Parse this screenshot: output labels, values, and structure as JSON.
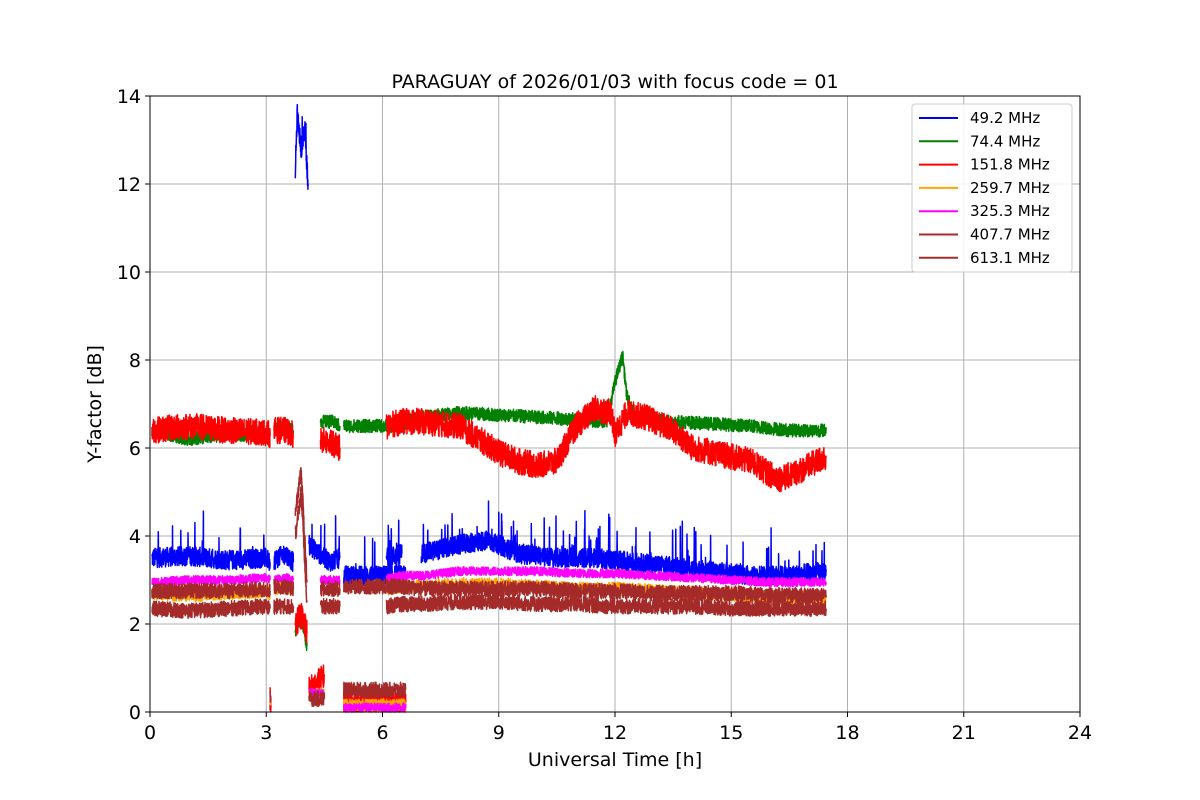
{
  "chart_data": {
    "type": "line",
    "title": "PARAGUAY of 2026/01/03 with focus code = 01",
    "xlabel": "Universal Time [h]",
    "ylabel": "Y-factor [dB]",
    "xlim": [
      0,
      24
    ],
    "ylim": [
      0,
      14
    ],
    "xticks": [
      0,
      3,
      6,
      9,
      12,
      15,
      18,
      21,
      24
    ],
    "yticks": [
      0,
      2,
      4,
      6,
      8,
      10,
      12,
      14
    ],
    "grid": true,
    "legend_position": "top-right",
    "series": [
      {
        "name": " 49.2 MHz",
        "color": "#0000ff",
        "noise": 0.45,
        "spikes": 0.45,
        "segments": [
          {
            "x": [
              0.05,
              1.0,
              2.0,
              3.0,
              3.1
            ],
            "y": [
              3.5,
              3.55,
              3.45,
              3.5,
              3.4
            ]
          },
          {
            "x": [
              3.1,
              3.12
            ],
            "y": [
              0.2,
              0.2
            ]
          },
          {
            "x": [
              3.2,
              3.5,
              3.7
            ],
            "y": [
              3.45,
              3.6,
              3.4
            ]
          },
          {
            "x": [
              3.75,
              3.8,
              3.9,
              4.0,
              4.05,
              4.08
            ],
            "y": [
              12.3,
              13.6,
              12.8,
              13.2,
              12.4,
              12.0
            ]
          },
          {
            "x": [
              4.1,
              4.5,
              4.7,
              4.9
            ],
            "y": [
              3.8,
              3.5,
              3.4,
              3.5
            ]
          },
          {
            "x": [
              5.0,
              6.0,
              6.6
            ],
            "y": [
              3.1,
              3.1,
              3.1
            ]
          },
          {
            "x": [
              6.1,
              6.5
            ],
            "y": [
              3.5,
              3.6
            ]
          },
          {
            "x": [
              7.0,
              8.0,
              8.7,
              9.0,
              9.5,
              10.5,
              11.5,
              12.5,
              13.5,
              14.5,
              15.5,
              16.5,
              17.45
            ],
            "y": [
              3.6,
              3.8,
              3.9,
              3.8,
              3.6,
              3.5,
              3.5,
              3.4,
              3.3,
              3.2,
              3.1,
              3.1,
              3.2
            ]
          }
        ]
      },
      {
        "name": " 74.4 MHz",
        "color": "#008000",
        "noise": 0.3,
        "spikes": 0,
        "segments": [
          {
            "x": [
              0.05,
              1.0,
              2.0,
              3.0,
              3.1
            ],
            "y": [
              6.4,
              6.2,
              6.3,
              6.3,
              6.3
            ]
          },
          {
            "x": [
              3.2,
              3.5,
              3.7
            ],
            "y": [
              6.4,
              6.5,
              6.4
            ]
          },
          {
            "x": [
              3.75,
              3.9,
              4.05
            ],
            "y": [
              1.8,
              2.2,
              1.5
            ]
          },
          {
            "x": [
              4.4,
              4.7,
              4.9
            ],
            "y": [
              6.6,
              6.6,
              6.5
            ]
          },
          {
            "x": [
              5.0,
              6.0,
              6.6
            ],
            "y": [
              6.5,
              6.5,
              6.5
            ]
          },
          {
            "x": [
              6.1,
              6.5,
              7.0,
              8.0,
              9.0,
              10.0,
              11.0,
              11.8,
              12.0,
              12.2,
              12.3,
              12.5,
              13.5,
              14.5,
              15.5,
              16.5,
              17.45
            ],
            "y": [
              6.5,
              6.6,
              6.7,
              6.8,
              6.75,
              6.7,
              6.65,
              6.6,
              7.5,
              8.1,
              7.2,
              6.7,
              6.6,
              6.55,
              6.5,
              6.4,
              6.4
            ]
          }
        ]
      },
      {
        "name": " 151.8 MHz",
        "color": "#ff0000",
        "noise": 0.6,
        "spikes": 0,
        "segments": [
          {
            "x": [
              0.05,
              1.0,
              2.0,
              3.0,
              3.1
            ],
            "y": [
              6.4,
              6.5,
              6.4,
              6.35,
              6.3
            ]
          },
          {
            "x": [
              3.1,
              3.12
            ],
            "y": [
              0.3,
              0.3
            ]
          },
          {
            "x": [
              3.2,
              3.5,
              3.7
            ],
            "y": [
              6.4,
              6.4,
              6.3
            ]
          },
          {
            "x": [
              3.75,
              3.9,
              4.05
            ],
            "y": [
              2.0,
              2.2,
              1.8
            ]
          },
          {
            "x": [
              4.1,
              4.5
            ],
            "y": [
              0.5,
              0.8
            ]
          },
          {
            "x": [
              4.4,
              4.7,
              4.9
            ],
            "y": [
              6.2,
              6.1,
              6.0
            ]
          },
          {
            "x": [
              5.0,
              6.0,
              6.6
            ],
            "y": [
              0.2,
              0.2,
              0.2
            ]
          },
          {
            "x": [
              6.1,
              6.5,
              7.0,
              8.0,
              8.5,
              9.0,
              9.5,
              10.0,
              10.5,
              11.0,
              11.5,
              11.9,
              12.0,
              12.3,
              12.8,
              13.5,
              14.0,
              14.5,
              15.0,
              15.5,
              16.0,
              16.3,
              16.8,
              17.45
            ],
            "y": [
              6.5,
              6.6,
              6.6,
              6.5,
              6.2,
              5.9,
              5.7,
              5.6,
              5.7,
              6.5,
              6.9,
              6.8,
              6.3,
              6.8,
              6.7,
              6.4,
              6.0,
              5.9,
              5.8,
              5.7,
              5.4,
              5.3,
              5.5,
              5.8
            ]
          }
        ]
      },
      {
        "name": " 259.7 MHz",
        "color": "#ffa500",
        "noise": 0.3,
        "spikes": 0,
        "segments": [
          {
            "x": [
              0.05,
              1.0,
              2.0,
              3.0,
              3.1
            ],
            "y": [
              2.7,
              2.65,
              2.7,
              2.75,
              2.7
            ]
          },
          {
            "x": [
              3.1,
              3.12
            ],
            "y": [
              0.25,
              0.25
            ]
          },
          {
            "x": [
              3.2,
              3.5,
              3.7
            ],
            "y": [
              2.8,
              2.85,
              2.8
            ]
          },
          {
            "x": [
              4.1,
              4.5
            ],
            "y": [
              0.4,
              0.4
            ]
          },
          {
            "x": [
              5.0,
              6.0,
              6.6
            ],
            "y": [
              0.15,
              0.15,
              0.15
            ]
          },
          {
            "x": [
              6.1,
              6.5,
              7.0,
              8.0,
              9.0,
              10.0,
              11.0,
              12.0,
              13.0,
              14.0,
              15.0,
              16.0,
              17.45
            ],
            "y": [
              2.8,
              2.85,
              2.85,
              2.9,
              2.9,
              2.85,
              2.8,
              2.8,
              2.75,
              2.7,
              2.65,
              2.6,
              2.6
            ]
          }
        ]
      },
      {
        "name": " 325.3 MHz",
        "color": "#ff00ff",
        "noise": 0.2,
        "spikes": 0,
        "segments": [
          {
            "x": [
              0.05,
              1.0,
              2.0,
              3.0,
              3.1
            ],
            "y": [
              2.95,
              3.0,
              3.0,
              3.05,
              3.0
            ]
          },
          {
            "x": [
              3.1,
              3.12
            ],
            "y": [
              0.3,
              0.3
            ]
          },
          {
            "x": [
              3.2,
              3.5,
              3.7
            ],
            "y": [
              3.0,
              3.05,
              3.0
            ]
          },
          {
            "x": [
              4.1,
              4.5
            ],
            "y": [
              0.45,
              0.4
            ]
          },
          {
            "x": [
              4.4,
              4.7,
              4.9
            ],
            "y": [
              3.0,
              3.0,
              3.0
            ]
          },
          {
            "x": [
              5.0,
              6.0,
              6.6
            ],
            "y": [
              0.1,
              0.1,
              0.1
            ]
          },
          {
            "x": [
              6.1,
              6.5,
              7.0,
              8.0,
              9.0,
              10.0,
              11.0,
              12.0,
              13.0,
              14.0,
              15.0,
              16.0,
              17.45
            ],
            "y": [
              3.05,
              3.1,
              3.1,
              3.2,
              3.2,
              3.2,
              3.15,
              3.15,
              3.1,
              3.05,
              3.0,
              2.95,
              2.95
            ]
          }
        ]
      },
      {
        "name": " 407.7 MHz",
        "color": "#a52a2a",
        "noise": 0.35,
        "spikes": 0,
        "segments": [
          {
            "x": [
              0.05,
              1.0,
              2.0,
              3.0,
              3.1
            ],
            "y": [
              2.35,
              2.3,
              2.35,
              2.4,
              2.35
            ]
          },
          {
            "x": [
              3.1,
              3.12
            ],
            "y": [
              0.35,
              0.35
            ]
          },
          {
            "x": [
              3.2,
              3.5,
              3.7
            ],
            "y": [
              2.4,
              2.4,
              2.4
            ]
          },
          {
            "x": [
              3.75,
              3.9,
              4.05
            ],
            "y": [
              4.5,
              5.5,
              3.0
            ]
          },
          {
            "x": [
              4.1,
              4.5
            ],
            "y": [
              0.3,
              0.3
            ]
          },
          {
            "x": [
              4.4,
              4.7,
              4.9
            ],
            "y": [
              2.4,
              2.4,
              2.4
            ]
          },
          {
            "x": [
              5.0,
              6.0,
              6.6
            ],
            "y": [
              0.5,
              0.5,
              0.5
            ]
          },
          {
            "x": [
              6.1,
              6.5,
              7.0,
              8.0,
              9.0,
              10.0,
              11.0,
              12.0,
              13.0,
              14.0,
              15.0,
              16.0,
              17.45
            ],
            "y": [
              2.4,
              2.45,
              2.45,
              2.5,
              2.5,
              2.45,
              2.45,
              2.4,
              2.4,
              2.4,
              2.35,
              2.35,
              2.35
            ]
          }
        ]
      },
      {
        "name": " 613.1 MHz",
        "color": "#a52a2a",
        "noise": 0.35,
        "spikes": 0,
        "segments": [
          {
            "x": [
              0.05,
              1.0,
              2.0,
              3.0,
              3.1
            ],
            "y": [
              2.75,
              2.75,
              2.75,
              2.8,
              2.75
            ]
          },
          {
            "x": [
              3.2,
              3.5,
              3.7
            ],
            "y": [
              2.85,
              2.85,
              2.8
            ]
          },
          {
            "x": [
              3.75,
              3.9,
              4.05
            ],
            "y": [
              4.0,
              5.0,
              2.5
            ]
          },
          {
            "x": [
              4.4,
              4.7,
              4.9
            ],
            "y": [
              2.8,
              2.8,
              2.8
            ]
          },
          {
            "x": [
              5.0,
              6.0,
              6.6
            ],
            "y": [
              2.85,
              2.85,
              2.85
            ]
          },
          {
            "x": [
              6.1,
              6.5,
              7.0,
              8.0,
              9.0,
              10.0,
              11.0,
              12.0,
              13.0,
              14.0,
              15.0,
              16.0,
              17.45
            ],
            "y": [
              2.85,
              2.85,
              2.8,
              2.8,
              2.8,
              2.8,
              2.75,
              2.75,
              2.7,
              2.7,
              2.7,
              2.65,
              2.65
            ]
          }
        ]
      }
    ]
  }
}
